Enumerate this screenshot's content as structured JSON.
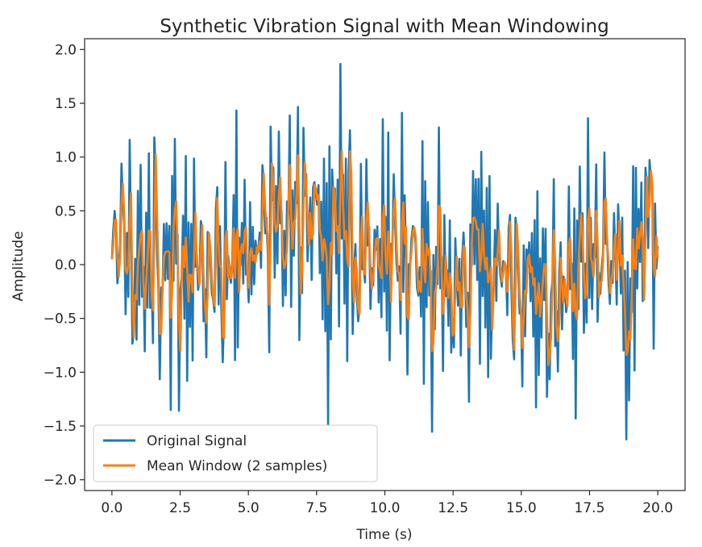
{
  "chart_data": {
    "type": "line",
    "title": "Synthetic Vibration Signal with Mean Windowing",
    "xlabel": "Time (s)",
    "ylabel": "Amplitude",
    "xlim": [
      -1.0,
      21.0
    ],
    "ylim": [
      -2.1,
      2.1
    ],
    "x_ticks": [
      0.0,
      2.5,
      5.0,
      7.5,
      10.0,
      12.5,
      15.0,
      17.5,
      20.0
    ],
    "x_tick_labels": [
      "0.0",
      "2.5",
      "5.0",
      "7.5",
      "10.0",
      "12.5",
      "15.0",
      "17.5",
      "20.0"
    ],
    "y_ticks": [
      -2.0,
      -1.5,
      -1.0,
      -0.5,
      0.0,
      0.5,
      1.0,
      1.5,
      2.0
    ],
    "y_tick_labels": [
      "−2.0",
      "−1.5",
      "−1.0",
      "−0.5",
      "0.0",
      "0.5",
      "1.0",
      "1.5",
      "2.0"
    ],
    "grid": false,
    "legend_position": "lower-left",
    "x_start": 0.0,
    "x_end": 20.0,
    "sample_count": 400,
    "series": [
      {
        "name": "Original Signal",
        "color": "#1f77b4",
        "description_hint": "noisy oscillation ~8 Hz, amplitude approx ±1.9, baseline shift +0.3 from t≈5 to t≈10"
      },
      {
        "name": "Mean Window (2 samples)",
        "color": "#ff7f0e"
      }
    ],
    "legend": [
      {
        "label": "Original Signal",
        "color": "#1f77b4"
      },
      {
        "label": "Mean Window (2 samples)",
        "color": "#ff7f0e"
      }
    ]
  }
}
